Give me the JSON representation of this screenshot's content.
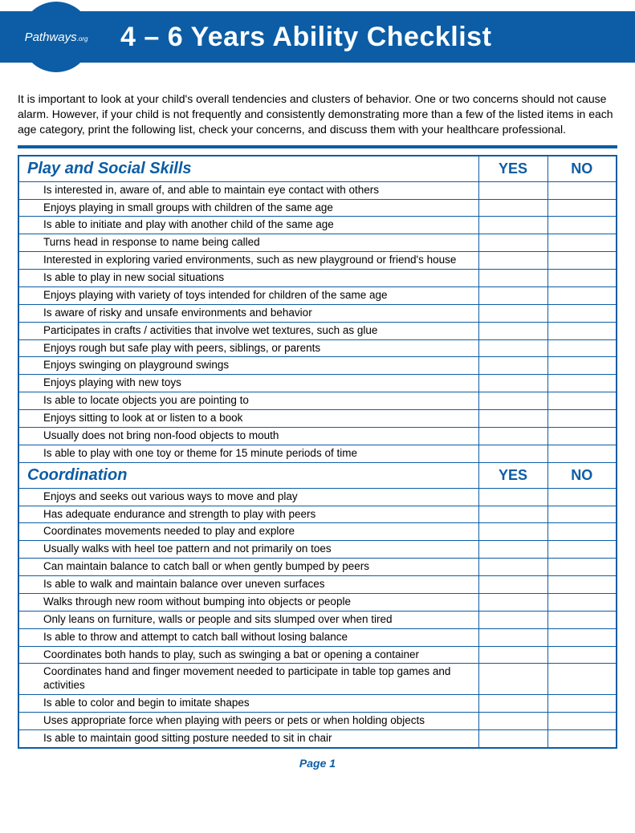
{
  "colors": {
    "brand": "#0c5da5",
    "bg": "#ffffff",
    "text": "#000000"
  },
  "header": {
    "logo_main": "Pathways",
    "logo_sub": ".org",
    "title": "4 – 6 Years Ability Checklist"
  },
  "intro": "It is important to look at your child's overall tendencies and clusters of behavior. One or two concerns should not cause alarm. However, if your child is not frequently and consistently demonstrating more than a few of the listed items in each age category, print the following list, check your concerns, and discuss them with your healthcare professional.",
  "cols": {
    "yes": "YES",
    "no": "NO"
  },
  "sections": [
    {
      "title": "Play and Social Skills",
      "items": [
        "Is interested in, aware of, and able to maintain eye contact with others",
        "Enjoys playing in small groups with children of the same age",
        "Is able to initiate and play with another child of the same age",
        "Turns head in response to name being called",
        "Interested in exploring varied environments, such as new playground or friend's house",
        "Is able to play in new social situations",
        "Enjoys playing with variety of toys intended for children of the same age",
        "Is aware of risky and unsafe environments and behavior",
        "Participates in crafts / activities that involve wet textures, such as glue",
        "Enjoys rough but safe play with peers, siblings, or parents",
        "Enjoys swinging on playground swings",
        "Enjoys playing with new toys",
        "Is able to locate objects you are pointing to",
        "Enjoys sitting to look  at or listen to a book",
        "Usually does not bring non-food objects to mouth",
        "Is able to play with one toy or theme for 15 minute periods of time"
      ]
    },
    {
      "title": "Coordination",
      "items": [
        "Enjoys and seeks out various ways to move and play",
        "Has adequate endurance and strength to play with peers",
        "Coordinates movements needed to play and explore",
        "Usually walks with heel toe pattern and not primarily on toes",
        "Can maintain balance to catch ball or when gently bumped by peers",
        "Is able to walk and maintain balance over uneven surfaces",
        "Walks through new room without bumping into objects or people",
        "Only leans on furniture, walls or people and sits slumped over when tired",
        "Is able to throw and attempt to catch ball without losing balance",
        "Coordinates both hands to play, such as swinging a bat or opening a container",
        "Coordinates hand and finger movement needed to participate in table top games and activities",
        "Is able to color and begin to imitate shapes",
        "Uses appropriate force when playing with peers or pets or when holding objects",
        "Is able to maintain good sitting posture needed to sit in chair"
      ]
    }
  ],
  "footer": "Page 1"
}
